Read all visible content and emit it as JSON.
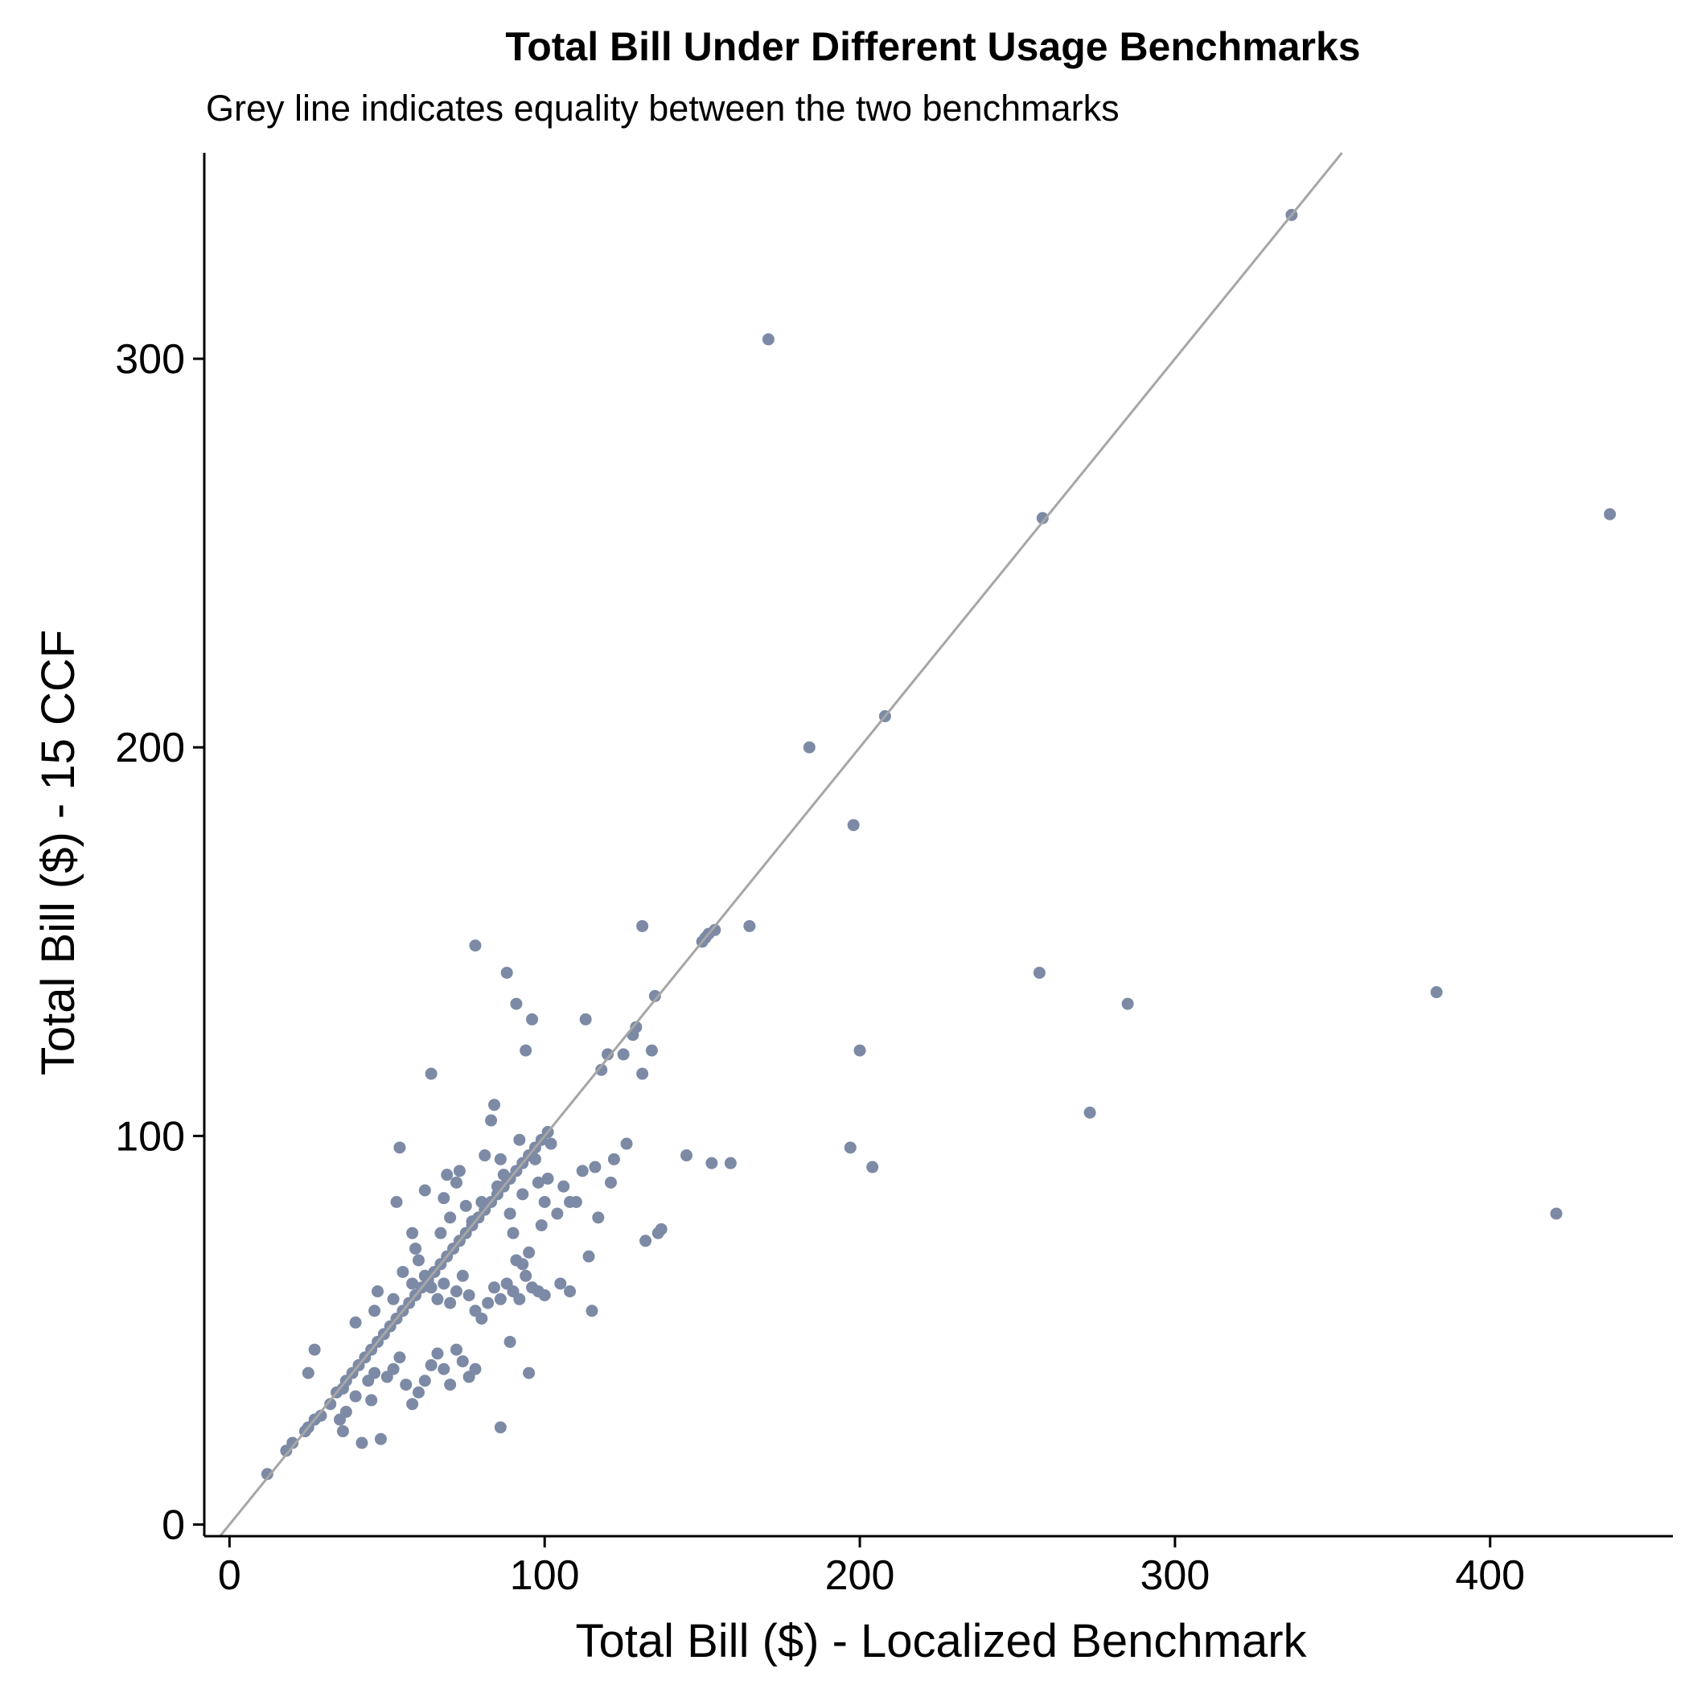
{
  "chart_data": {
    "type": "scatter",
    "title": "Total Bill Under Different Usage Benchmarks",
    "subtitle": "Grey line indicates equality between the two benchmarks",
    "xlabel": "Total Bill ($) - Localized Benchmark",
    "ylabel": "Total Bill ($) - 15 CCF",
    "xlim": [
      -8,
      458
    ],
    "ylim": [
      -3,
      353
    ],
    "x_ticks": [
      0,
      100,
      200,
      300,
      400
    ],
    "y_ticks": [
      0,
      100,
      200,
      300
    ],
    "reference_line": {
      "type": "y=x",
      "color": "#a6a6a6"
    },
    "point_color": "#7c8aa5",
    "grid": false,
    "legend": "none",
    "points": [
      [
        12,
        13
      ],
      [
        18,
        19
      ],
      [
        20,
        21
      ],
      [
        24,
        24
      ],
      [
        25,
        25
      ],
      [
        27,
        27
      ],
      [
        29,
        28
      ],
      [
        32,
        31
      ],
      [
        34,
        34
      ],
      [
        36,
        35
      ],
      [
        37,
        37
      ],
      [
        39,
        39
      ],
      [
        41,
        41
      ],
      [
        43,
        43
      ],
      [
        45,
        45
      ],
      [
        47,
        47
      ],
      [
        49,
        49
      ],
      [
        51,
        51
      ],
      [
        53,
        53
      ],
      [
        55,
        55
      ],
      [
        57,
        57
      ],
      [
        59,
        59
      ],
      [
        61,
        61
      ],
      [
        63,
        63
      ],
      [
        65,
        65
      ],
      [
        67,
        67
      ],
      [
        69,
        69
      ],
      [
        71,
        71
      ],
      [
        73,
        73
      ],
      [
        75,
        75
      ],
      [
        77,
        77
      ],
      [
        79,
        79
      ],
      [
        81,
        81
      ],
      [
        83,
        83
      ],
      [
        85,
        85
      ],
      [
        87,
        87
      ],
      [
        89,
        89
      ],
      [
        91,
        91
      ],
      [
        93,
        93
      ],
      [
        95,
        95
      ],
      [
        97,
        97
      ],
      [
        99,
        99
      ],
      [
        101,
        101
      ],
      [
        25,
        39
      ],
      [
        27,
        45
      ],
      [
        35,
        27
      ],
      [
        36,
        24
      ],
      [
        37,
        29
      ],
      [
        40,
        33
      ],
      [
        42,
        21
      ],
      [
        44,
        37
      ],
      [
        45,
        32
      ],
      [
        48,
        22
      ],
      [
        50,
        38
      ],
      [
        52,
        40
      ],
      [
        54,
        43
      ],
      [
        56,
        36
      ],
      [
        58,
        31
      ],
      [
        60,
        34
      ],
      [
        62,
        37
      ],
      [
        64,
        41
      ],
      [
        66,
        44
      ],
      [
        68,
        40
      ],
      [
        70,
        36
      ],
      [
        72,
        45
      ],
      [
        74,
        42
      ],
      [
        76,
        38
      ],
      [
        78,
        40
      ],
      [
        40,
        52
      ],
      [
        46,
        55
      ],
      [
        47,
        60
      ],
      [
        52,
        58
      ],
      [
        55,
        65
      ],
      [
        58,
        62
      ],
      [
        60,
        68
      ],
      [
        62,
        64
      ],
      [
        64,
        61
      ],
      [
        66,
        58
      ],
      [
        68,
        62
      ],
      [
        70,
        57
      ],
      [
        72,
        60
      ],
      [
        74,
        64
      ],
      [
        76,
        59
      ],
      [
        78,
        55
      ],
      [
        80,
        53
      ],
      [
        82,
        57
      ],
      [
        84,
        61
      ],
      [
        86,
        58
      ],
      [
        88,
        62
      ],
      [
        90,
        60
      ],
      [
        92,
        58
      ],
      [
        94,
        64
      ],
      [
        96,
        61
      ],
      [
        98,
        60
      ],
      [
        100,
        59
      ],
      [
        53,
        83
      ],
      [
        54,
        97
      ],
      [
        58,
        75
      ],
      [
        59,
        71
      ],
      [
        62,
        86
      ],
      [
        64,
        116
      ],
      [
        67,
        75
      ],
      [
        68,
        84
      ],
      [
        69,
        90
      ],
      [
        70,
        79
      ],
      [
        72,
        88
      ],
      [
        73,
        91
      ],
      [
        75,
        82
      ],
      [
        77,
        78
      ],
      [
        78,
        149
      ],
      [
        80,
        83
      ],
      [
        81,
        95
      ],
      [
        83,
        104
      ],
      [
        84,
        108
      ],
      [
        85,
        87
      ],
      [
        86,
        94
      ],
      [
        87,
        90
      ],
      [
        88,
        142
      ],
      [
        89,
        80
      ],
      [
        90,
        75
      ],
      [
        91,
        134
      ],
      [
        92,
        99
      ],
      [
        93,
        85
      ],
      [
        94,
        122
      ],
      [
        95,
        70
      ],
      [
        96,
        130
      ],
      [
        97,
        94
      ],
      [
        98,
        88
      ],
      [
        99,
        77
      ],
      [
        100,
        83
      ],
      [
        101,
        89
      ],
      [
        102,
        98
      ],
      [
        104,
        80
      ],
      [
        106,
        87
      ],
      [
        108,
        83
      ],
      [
        110,
        83
      ],
      [
        112,
        91
      ],
      [
        113,
        130
      ],
      [
        114,
        69
      ],
      [
        115,
        55
      ],
      [
        116,
        92
      ],
      [
        117,
        79
      ],
      [
        118,
        117
      ],
      [
        120,
        121
      ],
      [
        121,
        88
      ],
      [
        122,
        94
      ],
      [
        125,
        121
      ],
      [
        126,
        98
      ],
      [
        128,
        126
      ],
      [
        129,
        128
      ],
      [
        131,
        116
      ],
      [
        132,
        73
      ],
      [
        134,
        122
      ],
      [
        135,
        136
      ],
      [
        136,
        75
      ],
      [
        137,
        76
      ],
      [
        145,
        95
      ],
      [
        150,
        150
      ],
      [
        152,
        152
      ],
      [
        153,
        93
      ],
      [
        159,
        93
      ],
      [
        165,
        154
      ],
      [
        46,
        39
      ],
      [
        86,
        25
      ],
      [
        89,
        47
      ],
      [
        91,
        68
      ],
      [
        93,
        67
      ],
      [
        95,
        39
      ],
      [
        105,
        62
      ],
      [
        108,
        60
      ],
      [
        131,
        154
      ],
      [
        151,
        151
      ],
      [
        154,
        153
      ],
      [
        171,
        305
      ],
      [
        184,
        200
      ],
      [
        197,
        97
      ],
      [
        198,
        180
      ],
      [
        200,
        122
      ],
      [
        204,
        92
      ],
      [
        208,
        208
      ],
      [
        257,
        142
      ],
      [
        258,
        259
      ],
      [
        273,
        106
      ],
      [
        285,
        134
      ],
      [
        337,
        337
      ],
      [
        383,
        137
      ],
      [
        421,
        80
      ],
      [
        438,
        260
      ]
    ]
  }
}
